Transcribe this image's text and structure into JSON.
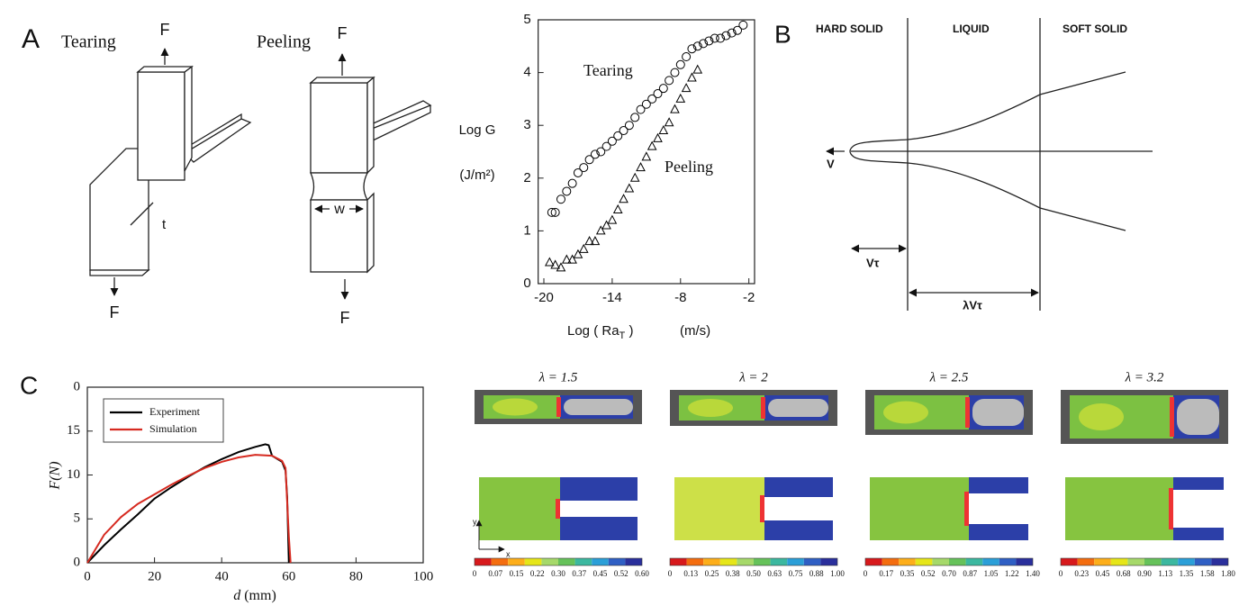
{
  "panel_a": {
    "letter": "A",
    "tearing": "Tearing",
    "peeling": "Peeling",
    "force": "F",
    "thickness": "t",
    "width": "w"
  },
  "panel_b": {
    "letter": "B",
    "zones": [
      "HARD SOLID",
      "LIQUID",
      "SOFT SOLID"
    ],
    "velocity": "V",
    "length_short": "Vτ",
    "length_long": "λVτ"
  },
  "panel_c": {
    "letter": "C",
    "axis_y": "y",
    "axis_x": "x",
    "simulations": [
      {
        "label": "λ = 1.5",
        "colorbar_labels": [
          "0",
          "0.07",
          "0.15",
          "0.22",
          "0.30",
          "0.37",
          "0.45",
          "0.52",
          "0.60"
        ]
      },
      {
        "label": "λ = 2",
        "colorbar_labels": [
          "0",
          "0.13",
          "0.25",
          "0.38",
          "0.50",
          "0.63",
          "0.75",
          "0.88",
          "1.00"
        ]
      },
      {
        "label": "λ = 2.5",
        "colorbar_labels": [
          "0",
          "0.17",
          "0.35",
          "0.52",
          "0.70",
          "0.87",
          "1.05",
          "1.22",
          "1.40"
        ]
      },
      {
        "label": "λ = 3.2",
        "colorbar_labels": [
          "0",
          "0.23",
          "0.45",
          "0.68",
          "0.90",
          "1.13",
          "1.35",
          "1.58",
          "1.80"
        ]
      }
    ]
  },
  "chart_data": [
    {
      "type": "scatter",
      "y_label": "Log G",
      "y_unit": "(J/m²)",
      "x_label": "Log ( Ra",
      "x_label_sub": "T",
      "x_label_end": " )",
      "x_unit": "(m/s)",
      "xlim": [
        -20.5,
        -1.5
      ],
      "xticks": [
        -20,
        -14,
        -8,
        -2
      ],
      "ylim": [
        0,
        5
      ],
      "yticks": [
        0,
        1,
        2,
        3,
        4,
        5
      ],
      "series": [
        {
          "name": "Tearing",
          "marker": "circle",
          "color": "#000000",
          "x": [
            -19.3,
            -19,
            -18.5,
            -18,
            -17.5,
            -17,
            -16.5,
            -16,
            -15.5,
            -15,
            -14.5,
            -14,
            -13.5,
            -13,
            -12.5,
            -12,
            -11.5,
            -11,
            -10.5,
            -10,
            -9.5,
            -9,
            -8.5,
            -8,
            -7.5,
            -7,
            -6.5,
            -6,
            -5.5,
            -5,
            -4.5,
            -4,
            -3.5,
            -3,
            -2.5
          ],
          "values": [
            1.35,
            1.35,
            1.6,
            1.75,
            1.9,
            2.1,
            2.2,
            2.35,
            2.45,
            2.5,
            2.6,
            2.7,
            2.8,
            2.9,
            3.0,
            3.15,
            3.3,
            3.4,
            3.5,
            3.6,
            3.7,
            3.85,
            4.0,
            4.15,
            4.3,
            4.45,
            4.5,
            4.55,
            4.6,
            4.65,
            4.65,
            4.7,
            4.75,
            4.8,
            4.9
          ]
        },
        {
          "name": "Peeling",
          "marker": "triangle",
          "color": "#000000",
          "x": [
            -19.5,
            -19,
            -18.5,
            -18,
            -17.5,
            -17,
            -16.5,
            -16,
            -15.5,
            -15,
            -14.5,
            -14,
            -13.5,
            -13,
            -12.5,
            -12,
            -11.5,
            -11,
            -10.5,
            -10,
            -9.5,
            -9,
            -8.5,
            -8,
            -7.5,
            -7,
            -6.5
          ],
          "values": [
            0.4,
            0.35,
            0.3,
            0.45,
            0.45,
            0.55,
            0.65,
            0.8,
            0.8,
            1.0,
            1.1,
            1.2,
            1.4,
            1.6,
            1.8,
            2.0,
            2.2,
            2.4,
            2.6,
            2.75,
            2.9,
            3.05,
            3.3,
            3.5,
            3.7,
            3.9,
            4.05
          ]
        }
      ]
    },
    {
      "type": "line",
      "y_label": "F(N)",
      "x_label": "d",
      "x_unit": "(mm)",
      "xlim": [
        0,
        100
      ],
      "xticks": [
        0,
        20,
        40,
        60,
        80,
        100
      ],
      "ylim": [
        0,
        20
      ],
      "yticks": [
        0,
        5,
        10,
        15,
        {
          "value": 20,
          "label": "0"
        }
      ],
      "series": [
        {
          "name": "Experiment",
          "color": "#000000",
          "x": [
            0,
            5,
            10,
            15,
            20,
            25,
            30,
            35,
            40,
            45,
            50,
            53,
            54,
            55,
            58,
            59,
            59.5,
            60
          ],
          "values": [
            0,
            2,
            3.8,
            5.5,
            7.3,
            8.6,
            9.8,
            10.9,
            11.8,
            12.6,
            13.2,
            13.5,
            13.4,
            12.2,
            11.5,
            10.5,
            7.5,
            0
          ]
        },
        {
          "name": "Simulation",
          "color": "#d62a20",
          "x": [
            0,
            5,
            10,
            15,
            20,
            25,
            30,
            35,
            40,
            45,
            50,
            55,
            58,
            59,
            60,
            60.5
          ],
          "values": [
            0,
            3.2,
            5.2,
            6.7,
            7.8,
            8.9,
            9.9,
            10.8,
            11.5,
            12.0,
            12.3,
            12.2,
            11.6,
            10.8,
            3,
            0
          ]
        }
      ]
    }
  ]
}
